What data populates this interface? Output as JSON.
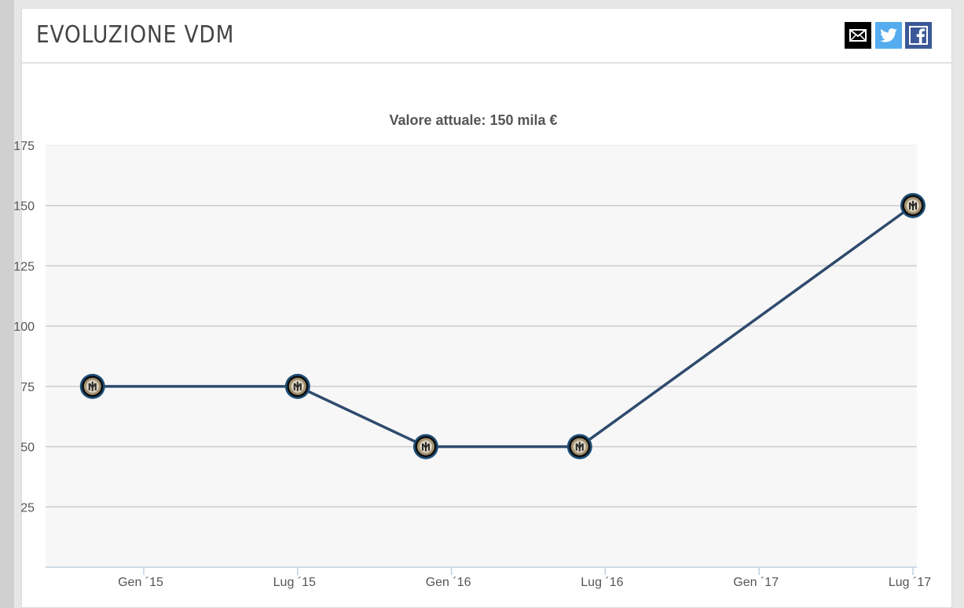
{
  "header": {
    "title": "EVOLUZIONE VDM",
    "share": [
      {
        "name": "mail",
        "icon": "mail-icon",
        "color": "#000000"
      },
      {
        "name": "twitter",
        "icon": "twitter-icon",
        "color": "#55acee"
      },
      {
        "name": "facebook",
        "icon": "facebook-icon",
        "color": "#3b5998"
      }
    ]
  },
  "chart_data": {
    "type": "line",
    "title": "Valore attuale: 150 mila €",
    "xlabel": "",
    "ylabel": "",
    "ylim": [
      0,
      175
    ],
    "yticks": [
      25,
      50,
      75,
      100,
      125,
      150,
      175
    ],
    "xticks": [
      "Gen ´15",
      "Lug ´15",
      "Gen ´16",
      "Lug ´16",
      "Gen ´17",
      "Lug ´17"
    ],
    "grid": true,
    "marker": "club-crest-icon",
    "line_color": "#2f4b6e",
    "plot_background": "#f7f7f7",
    "series": [
      {
        "x": [
          "Nov ´14",
          "Lug ´15",
          "Dic ´15",
          "Giu ´16",
          "Lug ´17"
        ],
        "values": [
          75,
          75,
          50,
          50,
          150
        ]
      }
    ]
  }
}
